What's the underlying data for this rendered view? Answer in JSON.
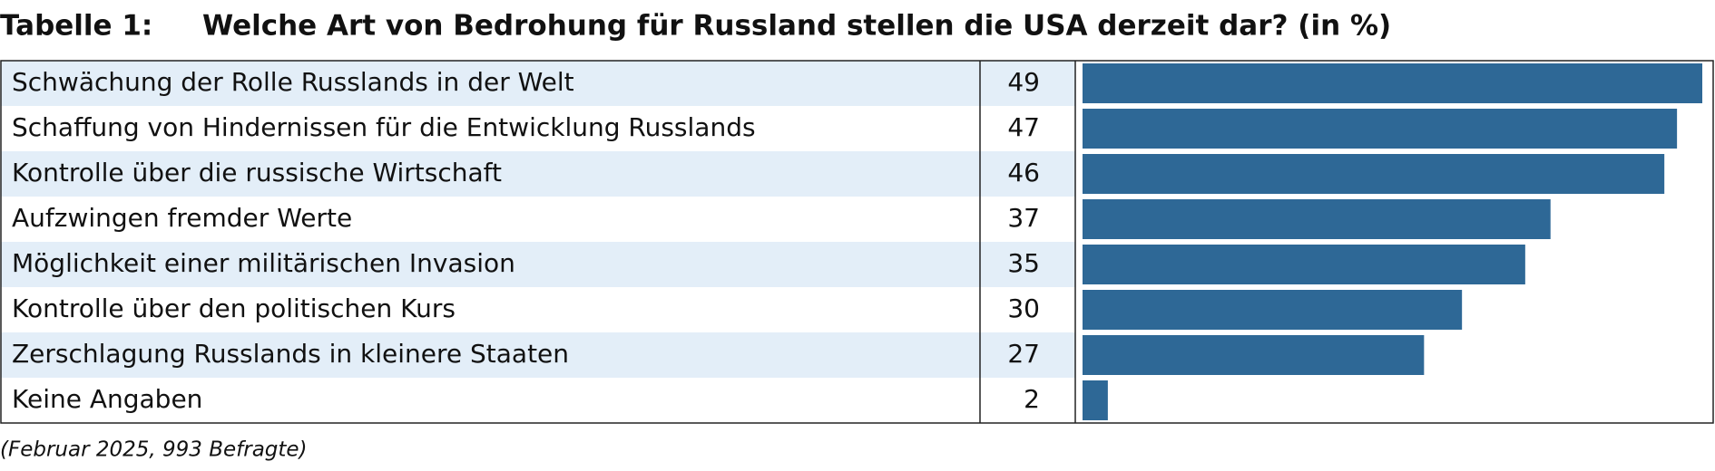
{
  "chart_data": {
    "type": "bar",
    "orientation": "horizontal",
    "label": "Tabelle 1:",
    "title": "Welche Art von Bedrohung für Russland stellen die USA derzeit dar? (in %)",
    "categories": [
      "Schwächung der Rolle Russlands in der Welt",
      "Schaffung von Hindernissen für die Entwicklung Russlands",
      "Kontrolle über die russische Wirtschaft",
      "Aufzwingen fremder Werte",
      "Möglichkeit einer militärischen Invasion",
      "Kontrolle über den politischen Kurs",
      "Zerschlagung Russlands in kleinere Staaten",
      "Keine Angaben"
    ],
    "values": [
      49,
      47,
      46,
      37,
      35,
      30,
      27,
      2
    ],
    "color": "#2e6896",
    "row_color": "#e3eef8",
    "note": "(Februar 2025, 993 Befragte)"
  }
}
